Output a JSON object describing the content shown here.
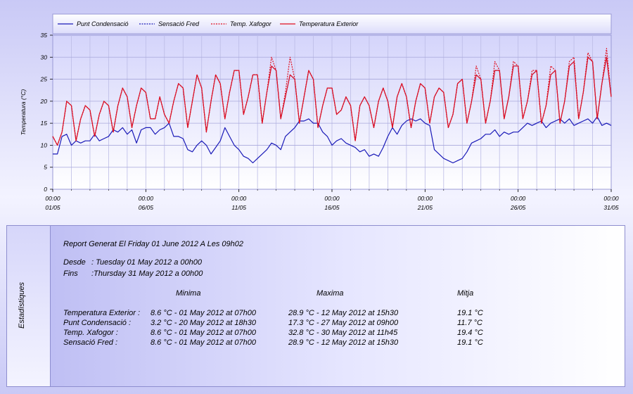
{
  "chart_data": {
    "type": "line",
    "ylabel": "Temperatura (°C)",
    "xlabel": "",
    "ylim": [
      0,
      35
    ],
    "yticks": [
      0,
      5,
      10,
      15,
      20,
      25,
      30,
      35
    ],
    "xlim": [
      0,
      30
    ],
    "xticks": [
      {
        "x": 0,
        "time": "00:00",
        "date": "01/05"
      },
      {
        "x": 5,
        "time": "00:00",
        "date": "06/05"
      },
      {
        "x": 10,
        "time": "00:00",
        "date": "11/05"
      },
      {
        "x": 15,
        "time": "00:00",
        "date": "16/05"
      },
      {
        "x": 20,
        "time": "00:00",
        "date": "21/05"
      },
      {
        "x": 25,
        "time": "00:00",
        "date": "26/05"
      },
      {
        "x": 30,
        "time": "00:00",
        "date": "31/05"
      }
    ],
    "grid": true,
    "legend_position": "top",
    "series": [
      {
        "name": "Punt Condensació",
        "color": "#1a1ab8",
        "dash": "solid",
        "x": [
          0,
          0.25,
          0.5,
          0.75,
          1,
          1.25,
          1.5,
          1.75,
          2,
          2.25,
          2.5,
          2.75,
          3,
          3.25,
          3.5,
          3.75,
          4,
          4.25,
          4.5,
          4.75,
          5,
          5.25,
          5.5,
          5.75,
          6,
          6.25,
          6.5,
          6.75,
          7,
          7.25,
          7.5,
          7.75,
          8,
          8.25,
          8.5,
          8.75,
          9,
          9.25,
          9.5,
          9.75,
          10,
          10.25,
          10.5,
          10.75,
          11,
          11.25,
          11.5,
          11.75,
          12,
          12.25,
          12.5,
          12.75,
          13,
          13.25,
          13.5,
          13.75,
          14,
          14.25,
          14.5,
          14.75,
          15,
          15.25,
          15.5,
          15.75,
          16,
          16.25,
          16.5,
          16.75,
          17,
          17.25,
          17.5,
          17.75,
          18,
          18.25,
          18.5,
          18.75,
          19,
          19.25,
          19.5,
          19.75,
          20,
          20.25,
          20.5,
          20.75,
          21,
          21.25,
          21.5,
          21.75,
          22,
          22.25,
          22.5,
          22.75,
          23,
          23.25,
          23.5,
          23.75,
          24,
          24.25,
          24.5,
          24.75,
          25,
          25.25,
          25.5,
          25.75,
          26,
          26.25,
          26.5,
          26.75,
          27,
          27.25,
          27.5,
          27.75,
          28,
          28.25,
          28.5,
          28.75,
          29,
          29.25,
          29.5,
          29.75,
          30
        ],
        "y": [
          8,
          8,
          12,
          12.5,
          10,
          11,
          10.5,
          11,
          11,
          12.5,
          11,
          11.5,
          12,
          13.5,
          13,
          14,
          12.5,
          13.5,
          10.5,
          13.5,
          14,
          14,
          12.5,
          13.5,
          14,
          15,
          12,
          12,
          11.5,
          9,
          8.5,
          10,
          11,
          10,
          8,
          9.5,
          11,
          14,
          12,
          10,
          9,
          7.5,
          7,
          6,
          7,
          8,
          9,
          10.5,
          10,
          9,
          12,
          13,
          14,
          15.5,
          15.5,
          16,
          15,
          15,
          13,
          12,
          10,
          11,
          11.5,
          10.5,
          10,
          9.5,
          8.5,
          9,
          7.5,
          8,
          7.5,
          9.5,
          12,
          14,
          12.5,
          14.5,
          15.5,
          16,
          15.5,
          16,
          15,
          14.5,
          9,
          8,
          7,
          6.5,
          6,
          6.5,
          7,
          8.5,
          10.5,
          11,
          11.5,
          12.5,
          12.5,
          13.5,
          12,
          13,
          12.5,
          13,
          13,
          14,
          15,
          14.5,
          15,
          15.5,
          14,
          15,
          15.5,
          16,
          15,
          16,
          14.5,
          15,
          15.5,
          16,
          15,
          16.5,
          14.5,
          15,
          14.5
        ]
      },
      {
        "name": "Sensació Fred",
        "color": "#1a1ab8",
        "dash": "dashed",
        "x": [
          0,
          0.25,
          0.5,
          0.75,
          1,
          1.25,
          1.5,
          1.75,
          2,
          2.25,
          2.5,
          2.75,
          3,
          3.25,
          3.5,
          3.75,
          4,
          4.25,
          4.5,
          4.75,
          5,
          5.25,
          5.5,
          5.75,
          6,
          6.25,
          6.5,
          6.75,
          7,
          7.25,
          7.5,
          7.75,
          8,
          8.25,
          8.5,
          8.75,
          9,
          9.25,
          9.5,
          9.75,
          10,
          10.25,
          10.5,
          10.75,
          11,
          11.25,
          11.5,
          11.75,
          12,
          12.25,
          12.5,
          12.75,
          13,
          13.25,
          13.5,
          13.75,
          14,
          14.25,
          14.5,
          14.75,
          15,
          15.25,
          15.5,
          15.75,
          16,
          16.25,
          16.5,
          16.75,
          17,
          17.25,
          17.5,
          17.75,
          18,
          18.25,
          18.5,
          18.75,
          19,
          19.25,
          19.5,
          19.75,
          20,
          20.25,
          20.5,
          20.75,
          21,
          21.25,
          21.5,
          21.75,
          22,
          22.25,
          22.5,
          22.75,
          23,
          23.25,
          23.5,
          23.75,
          24,
          24.25,
          24.5,
          24.75,
          25,
          25.25,
          25.5,
          25.75,
          26,
          26.25,
          26.5,
          26.75,
          27,
          27.25,
          27.5,
          27.75,
          28,
          28.25,
          28.5,
          28.75,
          29,
          29.25,
          29.5,
          29.75,
          30
        ],
        "y": [
          12,
          10,
          13,
          20,
          19,
          11,
          16,
          19,
          18,
          12,
          17,
          20,
          19,
          13,
          19,
          23,
          21,
          14,
          19,
          23,
          22,
          16,
          16,
          21,
          17,
          15,
          20,
          24,
          23,
          14,
          20,
          26,
          23,
          13,
          20,
          26,
          24,
          16,
          22,
          27,
          27,
          17,
          21,
          26,
          26,
          15,
          22,
          28,
          27,
          16,
          21,
          26,
          25,
          15,
          21,
          27,
          25,
          14,
          19,
          23,
          23,
          17,
          18,
          21,
          19,
          11,
          19,
          21,
          19,
          14,
          20,
          23,
          20,
          14,
          21,
          24,
          21,
          14,
          20,
          24,
          23,
          15,
          21,
          23,
          22,
          14,
          17,
          24,
          25,
          15,
          20,
          26,
          25,
          15,
          20,
          27,
          27,
          16,
          21,
          28,
          28,
          16,
          20,
          26,
          27,
          15,
          19,
          26,
          27,
          15,
          20,
          28,
          29,
          16,
          22,
          30,
          29,
          16,
          24,
          30,
          21
        ]
      },
      {
        "name": "Temp. Xafogor",
        "color": "#e01020",
        "dash": "dashed",
        "x": [
          0,
          0.25,
          0.5,
          0.75,
          1,
          1.25,
          1.5,
          1.75,
          2,
          2.25,
          2.5,
          2.75,
          3,
          3.25,
          3.5,
          3.75,
          4,
          4.25,
          4.5,
          4.75,
          5,
          5.25,
          5.5,
          5.75,
          6,
          6.25,
          6.5,
          6.75,
          7,
          7.25,
          7.5,
          7.75,
          8,
          8.25,
          8.5,
          8.75,
          9,
          9.25,
          9.5,
          9.75,
          10,
          10.25,
          10.5,
          10.75,
          11,
          11.25,
          11.5,
          11.75,
          12,
          12.25,
          12.5,
          12.75,
          13,
          13.25,
          13.5,
          13.75,
          14,
          14.25,
          14.5,
          14.75,
          15,
          15.25,
          15.5,
          15.75,
          16,
          16.25,
          16.5,
          16.75,
          17,
          17.25,
          17.5,
          17.75,
          18,
          18.25,
          18.5,
          18.75,
          19,
          19.25,
          19.5,
          19.75,
          20,
          20.25,
          20.5,
          20.75,
          21,
          21.25,
          21.5,
          21.75,
          22,
          22.25,
          22.5,
          22.75,
          23,
          23.25,
          23.5,
          23.75,
          24,
          24.25,
          24.5,
          24.75,
          25,
          25.25,
          25.5,
          25.75,
          26,
          26.25,
          26.5,
          26.75,
          27,
          27.25,
          27.5,
          27.75,
          28,
          28.25,
          28.5,
          28.75,
          29,
          29.25,
          29.5,
          29.75,
          30
        ],
        "y": [
          12,
          10,
          13,
          20,
          19,
          11,
          16,
          19,
          18,
          12,
          17,
          20,
          19,
          13,
          19,
          23,
          21,
          14,
          19,
          23,
          22,
          16,
          16,
          21,
          17,
          15,
          20,
          24,
          23,
          14,
          20,
          26,
          23,
          13,
          20,
          26,
          24,
          16,
          22,
          27,
          27,
          17,
          21,
          26,
          26,
          15,
          22,
          30,
          27,
          16,
          22,
          30,
          25,
          15,
          21,
          27,
          25,
          14,
          19,
          23,
          23,
          17,
          18,
          21,
          19,
          11,
          19,
          21,
          19,
          14,
          20,
          23,
          20,
          14,
          21,
          24,
          21,
          14,
          20,
          24,
          23,
          15,
          21,
          23,
          22,
          14,
          17,
          24,
          25,
          15,
          20,
          28,
          25,
          15,
          20,
          29,
          27,
          16,
          21,
          29,
          28,
          16,
          20,
          27,
          27,
          15,
          19,
          28,
          27,
          15,
          20,
          29,
          30,
          16,
          22,
          31,
          29,
          16,
          24,
          32,
          21
        ]
      },
      {
        "name": "Temperatura Exterior",
        "color": "#e01020",
        "dash": "solid",
        "x": [
          0,
          0.25,
          0.5,
          0.75,
          1,
          1.25,
          1.5,
          1.75,
          2,
          2.25,
          2.5,
          2.75,
          3,
          3.25,
          3.5,
          3.75,
          4,
          4.25,
          4.5,
          4.75,
          5,
          5.25,
          5.5,
          5.75,
          6,
          6.25,
          6.5,
          6.75,
          7,
          7.25,
          7.5,
          7.75,
          8,
          8.25,
          8.5,
          8.75,
          9,
          9.25,
          9.5,
          9.75,
          10,
          10.25,
          10.5,
          10.75,
          11,
          11.25,
          11.5,
          11.75,
          12,
          12.25,
          12.5,
          12.75,
          13,
          13.25,
          13.5,
          13.75,
          14,
          14.25,
          14.5,
          14.75,
          15,
          15.25,
          15.5,
          15.75,
          16,
          16.25,
          16.5,
          16.75,
          17,
          17.25,
          17.5,
          17.75,
          18,
          18.25,
          18.5,
          18.75,
          19,
          19.25,
          19.5,
          19.75,
          20,
          20.25,
          20.5,
          20.75,
          21,
          21.25,
          21.5,
          21.75,
          22,
          22.25,
          22.5,
          22.75,
          23,
          23.25,
          23.5,
          23.75,
          24,
          24.25,
          24.5,
          24.75,
          25,
          25.25,
          25.5,
          25.75,
          26,
          26.25,
          26.5,
          26.75,
          27,
          27.25,
          27.5,
          27.75,
          28,
          28.25,
          28.5,
          28.75,
          29,
          29.25,
          29.5,
          29.75,
          30
        ],
        "y": [
          12,
          10,
          13,
          20,
          19,
          11,
          16,
          19,
          18,
          12,
          17,
          20,
          19,
          13,
          19,
          23,
          21,
          14,
          19,
          23,
          22,
          16,
          16,
          21,
          17,
          15,
          20,
          24,
          23,
          14,
          20,
          26,
          23,
          13,
          20,
          26,
          24,
          16,
          22,
          27,
          27,
          17,
          21,
          26,
          26,
          15,
          22,
          28,
          27,
          16,
          21,
          26,
          25,
          15,
          21,
          27,
          25,
          14,
          19,
          23,
          23,
          17,
          18,
          21,
          19,
          11,
          19,
          21,
          19,
          14,
          20,
          23,
          20,
          14,
          21,
          24,
          21,
          14,
          20,
          24,
          23,
          15,
          21,
          23,
          22,
          14,
          17,
          24,
          25,
          15,
          20,
          26,
          25,
          15,
          20,
          27,
          27,
          16,
          21,
          28,
          28,
          16,
          20,
          26,
          27,
          15,
          19,
          26,
          27,
          15,
          20,
          28,
          29,
          16,
          22,
          30,
          29,
          16,
          24,
          30,
          21
        ]
      }
    ]
  },
  "stats": {
    "side_label": "Estadístiques",
    "report_line": "Report Generat El Friday 01 June 2012 A Les 09h02",
    "desde_label": "Desde",
    "desde_value": ": Tuesday 01 May 2012 a 00h00",
    "fins_label": "Fins",
    "fins_value": ":Thursday 31 May 2012 a 00h00",
    "headers": [
      "Minima",
      "Maxima",
      "Mitja"
    ],
    "rows": [
      {
        "label": "Temperatura Exterior :",
        "min": "8.6 °C - 01 May 2012 at 07h00",
        "max": "28.9 °C - 12 May 2012 at 15h30",
        "avg": "19.1 °C"
      },
      {
        "label": "Punt Condensació :",
        "min": "3.2 °C - 20 May 2012 at 18h30",
        "max": "17.3 °C - 27 May 2012 at 09h00",
        "avg": "11.7 °C"
      },
      {
        "label": "Temp. Xafogor :",
        "min": "8.6 °C - 01 May 2012 at 07h00",
        "max": "32.8 °C - 30 May 2012 at 11h45",
        "avg": "19.4 °C"
      },
      {
        "label": "Sensació Fred :",
        "min": "8.6 °C - 01 May 2012 at 07h00",
        "max": "28.9 °C - 12 May 2012 at 15h30",
        "avg": "19.1 °C"
      }
    ]
  }
}
